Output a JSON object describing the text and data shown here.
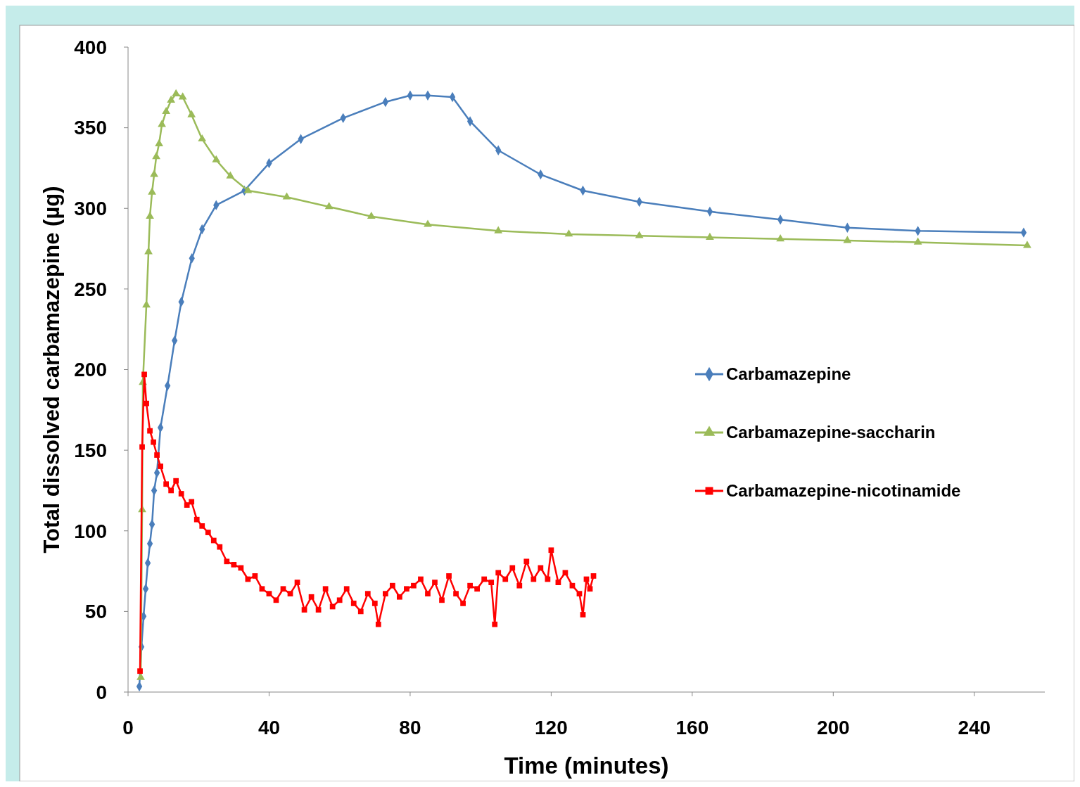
{
  "chart_data": {
    "type": "line",
    "xlabel": "Time (minutes)",
    "ylabel": "Total dissolved carbamazepine (µg)",
    "xlim": [
      0,
      260
    ],
    "xticks": [
      0,
      40,
      80,
      120,
      160,
      200,
      240
    ],
    "ylim": [
      0,
      400
    ],
    "yticks": [
      0,
      50,
      100,
      150,
      200,
      250,
      300,
      350,
      400
    ],
    "grid": false,
    "legend": "right",
    "series": [
      {
        "name": "Carbamazepine",
        "color": "#4a7ebb",
        "marker": "diamond",
        "x": [
          3.2,
          3.8,
          4.4,
          5,
          5.6,
          6.2,
          6.8,
          7.4,
          8.2,
          9.2,
          11.2,
          13.2,
          15.1,
          18.1,
          21,
          25,
          33,
          40,
          49,
          61,
          73,
          80,
          85,
          92,
          97,
          105,
          117,
          129,
          145,
          165,
          185,
          204,
          224,
          254
        ],
        "values": [
          3.5,
          28,
          47,
          64,
          80,
          92,
          104,
          125,
          136,
          164,
          190,
          218,
          242,
          269,
          287,
          302,
          311,
          328,
          343,
          356,
          366,
          370,
          370,
          369,
          354,
          336,
          321,
          311,
          304,
          298,
          293,
          288,
          286,
          285
        ]
      },
      {
        "name": "Carbamazepine-saccharin",
        "color": "#9bbb59",
        "marker": "triangle",
        "x": [
          3.6,
          4,
          4.2,
          5.2,
          5.8,
          6.2,
          6.8,
          7.4,
          8,
          8.8,
          9.6,
          10.8,
          12.2,
          13.6,
          15.5,
          18,
          21,
          25,
          29,
          34,
          45,
          57,
          69,
          85,
          105,
          125,
          145,
          165,
          185,
          204,
          224,
          255
        ],
        "values": [
          9,
          113,
          192,
          240,
          273,
          295,
          310,
          321,
          332,
          340,
          352,
          360,
          367,
          371,
          369,
          358,
          343,
          330,
          320,
          311,
          307,
          301,
          295,
          290,
          286,
          284,
          283,
          282,
          281,
          280,
          279,
          277
        ]
      },
      {
        "name": "Carbamazepine-nicotinamide",
        "color": "#ff0000",
        "marker": "square",
        "x": [
          3.4,
          4,
          4.6,
          5.2,
          6.2,
          7.2,
          8.2,
          9.2,
          10.8,
          12.2,
          13.6,
          15.1,
          16.7,
          18,
          19.5,
          21,
          22.7,
          24.3,
          26,
          28,
          30,
          32,
          34,
          36,
          38,
          40,
          42,
          44,
          46,
          48,
          50,
          52,
          54,
          56,
          58,
          60,
          62,
          64,
          66,
          68,
          70,
          71,
          73,
          75,
          77,
          79,
          81,
          83,
          85,
          87,
          89,
          91,
          93,
          95,
          97,
          99,
          101,
          103,
          104,
          105,
          107,
          109,
          111,
          113,
          115,
          117,
          119,
          120,
          122,
          124,
          126,
          128,
          129,
          130,
          131,
          132
        ],
        "values": [
          13,
          152,
          197,
          179,
          162,
          155,
          147,
          140,
          129,
          125,
          131,
          123,
          116,
          118,
          107,
          103,
          99,
          94,
          90,
          81,
          79,
          77,
          70,
          72,
          64,
          61,
          57,
          64,
          61,
          68,
          51,
          59,
          51,
          64,
          53,
          57,
          64,
          55,
          50,
          61,
          55,
          42,
          61,
          66,
          59,
          64,
          66,
          70,
          61,
          68,
          57,
          72,
          61,
          55,
          66,
          64,
          70,
          68,
          42,
          74,
          70,
          77,
          66,
          81,
          70,
          77,
          70,
          88,
          68,
          74,
          66,
          61,
          48,
          70,
          64,
          72
        ]
      }
    ]
  }
}
